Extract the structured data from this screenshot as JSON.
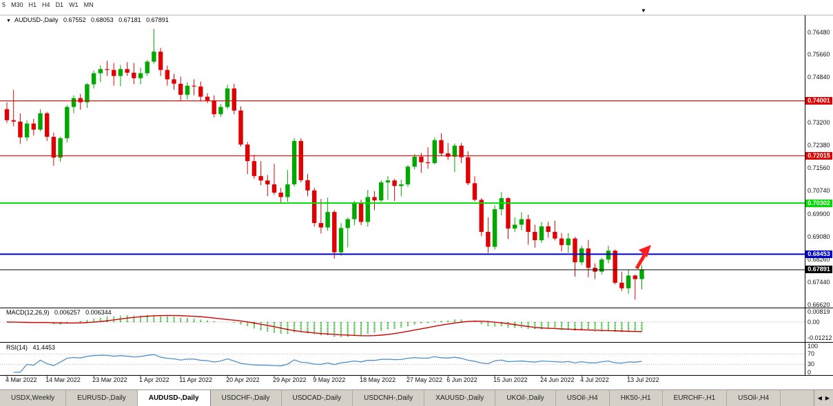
{
  "toolbar": {
    "timeframes": [
      "5",
      "M30",
      "H1",
      "H4",
      "D1",
      "W1",
      "MN"
    ]
  },
  "icons": {
    "chart_shift": "▼",
    "symbol_marker": "▼",
    "scroll_left": "◀",
    "scroll_right": "▶"
  },
  "header": {
    "marker": "▼",
    "symbol": "AUDUSD-,Daily",
    "open": "0.67552",
    "high": "0.68053",
    "low": "0.67181",
    "close": "0.67891"
  },
  "price_axis": {
    "labels": [
      "0.76480",
      "0.75660",
      "0.74840",
      "0.73200",
      "0.72380",
      "0.71560",
      "0.70740",
      "0.69900",
      "0.69080",
      "0.68260",
      "0.67440",
      "0.66620"
    ]
  },
  "indicators": {
    "macd": {
      "name": "MACD(12,26,9)",
      "value1": "0.006257",
      "value2": "0.006344",
      "axis_labels": [
        "0.00819",
        "0.00",
        "-0.01212"
      ]
    },
    "rsi": {
      "name": "RSI(14)",
      "value": "41.4453",
      "axis_labels": [
        "100",
        "70",
        "30",
        "0"
      ]
    }
  },
  "colors": {
    "candle_up": "#00A800",
    "candle_down": "#DF0202",
    "macd_bar": "#00A800",
    "macd_signal": "#D40000",
    "rsi_line": "#4E8FCC",
    "level_red": "#E00000",
    "level_green": "#00DC00",
    "level_blue": "#0000C8",
    "current_price": "#000000",
    "arrow": "#FF1E1E",
    "tab_bar": "#D4D0C8",
    "background": "#FFFFFF"
  },
  "chart_data": {
    "type": "candlestick",
    "symbol": "AUDUSD",
    "timeframe": "Daily",
    "title": "AUDUSD-,Daily 0.67552 0.68053 0.67181 0.67891",
    "ylim": [
      0.6662,
      0.7648
    ],
    "n_candles": 96,
    "x_tick_labels": [
      "4 Mar 2022",
      "14 Mar 2022",
      "23 Mar 2022",
      "1 Apr 2022",
      "11 Apr 2022",
      "20 Apr 2022",
      "29 Apr 2022",
      "9 May 2022",
      "18 May 2022",
      "27 May 2022",
      "6 Jun 2022",
      "15 Jun 2022",
      "24 Jun 2022",
      "4 Jul 2022",
      "13 Jul 2022"
    ],
    "x_tick_indices": [
      0,
      6,
      13,
      20,
      26,
      33,
      40,
      46,
      53,
      60,
      66,
      73,
      80,
      86,
      93
    ],
    "candles": [
      [
        0.737,
        0.7395,
        0.732,
        0.733
      ],
      [
        0.733,
        0.744,
        0.7308,
        0.7325
      ],
      [
        0.7325,
        0.7355,
        0.7245,
        0.7268
      ],
      [
        0.7268,
        0.733,
        0.7255,
        0.7318
      ],
      [
        0.7318,
        0.7335,
        0.7275,
        0.7296
      ],
      [
        0.7296,
        0.737,
        0.729,
        0.7355
      ],
      [
        0.7355,
        0.736,
        0.7255,
        0.727
      ],
      [
        0.727,
        0.7285,
        0.7165,
        0.7195
      ],
      [
        0.7195,
        0.727,
        0.718,
        0.7265
      ],
      [
        0.7265,
        0.7385,
        0.725,
        0.7378
      ],
      [
        0.7378,
        0.742,
        0.7355,
        0.741
      ],
      [
        0.741,
        0.7425,
        0.7368,
        0.7395
      ],
      [
        0.7395,
        0.7465,
        0.7375,
        0.746
      ],
      [
        0.746,
        0.751,
        0.7445,
        0.75
      ],
      [
        0.75,
        0.7528,
        0.7468,
        0.7515
      ],
      [
        0.7515,
        0.7545,
        0.749,
        0.7512
      ],
      [
        0.7512,
        0.7537,
        0.7455,
        0.749
      ],
      [
        0.749,
        0.753,
        0.7453,
        0.7515
      ],
      [
        0.7515,
        0.754,
        0.749,
        0.7502
      ],
      [
        0.7502,
        0.7537,
        0.746,
        0.7482
      ],
      [
        0.7482,
        0.752,
        0.746,
        0.75
      ],
      [
        0.75,
        0.7548,
        0.749,
        0.7542
      ],
      [
        0.7542,
        0.7661,
        0.7535,
        0.7578
      ],
      [
        0.7578,
        0.7592,
        0.749,
        0.7512
      ],
      [
        0.7512,
        0.7528,
        0.7455,
        0.7478
      ],
      [
        0.7478,
        0.7498,
        0.744,
        0.7462
      ],
      [
        0.7462,
        0.7488,
        0.74,
        0.7422
      ],
      [
        0.7422,
        0.7468,
        0.7405,
        0.7455
      ],
      [
        0.7455,
        0.7478,
        0.742,
        0.7452
      ],
      [
        0.7452,
        0.747,
        0.7398,
        0.7415
      ],
      [
        0.7415,
        0.7428,
        0.7392,
        0.7402
      ],
      [
        0.7402,
        0.742,
        0.734,
        0.7352
      ],
      [
        0.7352,
        0.7388,
        0.7342,
        0.7378
      ],
      [
        0.7378,
        0.7458,
        0.737,
        0.7445
      ],
      [
        0.7445,
        0.7462,
        0.7352,
        0.7365
      ],
      [
        0.7365,
        0.738,
        0.7235,
        0.7242
      ],
      [
        0.7242,
        0.7252,
        0.7135,
        0.7182
      ],
      [
        0.7182,
        0.7205,
        0.7118,
        0.7128
      ],
      [
        0.7128,
        0.7182,
        0.7095,
        0.7112
      ],
      [
        0.7112,
        0.7132,
        0.7055,
        0.7098
      ],
      [
        0.7098,
        0.7172,
        0.706,
        0.7068
      ],
      [
        0.7068,
        0.7085,
        0.7029,
        0.7052
      ],
      [
        0.7052,
        0.715,
        0.7035,
        0.7098
      ],
      [
        0.7098,
        0.7266,
        0.709,
        0.7255
      ],
      [
        0.7255,
        0.7265,
        0.7105,
        0.7113
      ],
      [
        0.7113,
        0.7135,
        0.7055,
        0.7076
      ],
      [
        0.7076,
        0.7085,
        0.6945,
        0.6958
      ],
      [
        0.6958,
        0.7045,
        0.692,
        0.6942
      ],
      [
        0.6942,
        0.705,
        0.693,
        0.6998
      ],
      [
        0.6998,
        0.7005,
        0.6829,
        0.6852
      ],
      [
        0.6852,
        0.6958,
        0.684,
        0.694
      ],
      [
        0.694,
        0.6978,
        0.687,
        0.6972
      ],
      [
        0.6972,
        0.7038,
        0.695,
        0.7028
      ],
      [
        0.7028,
        0.7042,
        0.695,
        0.6962
      ],
      [
        0.6962,
        0.7078,
        0.6945,
        0.7052
      ],
      [
        0.7052,
        0.7073,
        0.7005,
        0.704
      ],
      [
        0.704,
        0.7113,
        0.7035,
        0.7105
      ],
      [
        0.7105,
        0.7128,
        0.7042,
        0.7112
      ],
      [
        0.7112,
        0.7118,
        0.7038,
        0.7092
      ],
      [
        0.7092,
        0.7115,
        0.7055,
        0.7098
      ],
      [
        0.7098,
        0.7168,
        0.7088,
        0.7162
      ],
      [
        0.7162,
        0.7208,
        0.7152,
        0.7198
      ],
      [
        0.7198,
        0.7212,
        0.714,
        0.7178
      ],
      [
        0.7178,
        0.7232,
        0.7155,
        0.7175
      ],
      [
        0.7175,
        0.7268,
        0.717,
        0.7258
      ],
      [
        0.7258,
        0.7283,
        0.72,
        0.721
      ],
      [
        0.721,
        0.7248,
        0.7186,
        0.7198
      ],
      [
        0.7198,
        0.7246,
        0.7142,
        0.7238
      ],
      [
        0.7238,
        0.7248,
        0.7175,
        0.7196
      ],
      [
        0.7196,
        0.7218,
        0.7095,
        0.7102
      ],
      [
        0.7102,
        0.7127,
        0.7036,
        0.7042
      ],
      [
        0.7042,
        0.7048,
        0.691,
        0.6926
      ],
      [
        0.6926,
        0.6978,
        0.685,
        0.6872
      ],
      [
        0.6872,
        0.7022,
        0.6862,
        0.7008
      ],
      [
        0.7008,
        0.707,
        0.6986,
        0.7048
      ],
      [
        0.7048,
        0.7052,
        0.69,
        0.6938
      ],
      [
        0.6938,
        0.6978,
        0.6926,
        0.6952
      ],
      [
        0.6952,
        0.6997,
        0.6932,
        0.6972
      ],
      [
        0.6972,
        0.6988,
        0.688,
        0.6926
      ],
      [
        0.6926,
        0.6952,
        0.6869,
        0.6896
      ],
      [
        0.6896,
        0.6962,
        0.6886,
        0.6946
      ],
      [
        0.6946,
        0.6962,
        0.6905,
        0.6926
      ],
      [
        0.6926,
        0.6966,
        0.6895,
        0.6902
      ],
      [
        0.6902,
        0.6922,
        0.6855,
        0.6878
      ],
      [
        0.6878,
        0.6922,
        0.685,
        0.6902
      ],
      [
        0.6902,
        0.6908,
        0.6764,
        0.6816
      ],
      [
        0.6816,
        0.6876,
        0.6806,
        0.6866
      ],
      [
        0.6866,
        0.6896,
        0.6762,
        0.6796
      ],
      [
        0.6796,
        0.6812,
        0.6755,
        0.6782
      ],
      [
        0.6782,
        0.6832,
        0.6772,
        0.6826
      ],
      [
        0.6826,
        0.6876,
        0.6812,
        0.6858
      ],
      [
        0.6858,
        0.6862,
        0.6736,
        0.6742
      ],
      [
        0.6742,
        0.6782,
        0.6712,
        0.6722
      ],
      [
        0.6722,
        0.6788,
        0.6702,
        0.6768
      ],
      [
        0.6768,
        0.6772,
        0.6681,
        0.6755
      ],
      [
        0.67552,
        0.68053,
        0.67181,
        0.67891
      ]
    ],
    "horizontal_levels": [
      {
        "price": 0.74001,
        "label": "0.74001",
        "color": "#E00000",
        "line_width": 1.2,
        "kind": "resistance-line"
      },
      {
        "price": 0.72015,
        "label": "0.72015",
        "color": "#E00000",
        "line_width": 1.2,
        "kind": "resistance-line"
      },
      {
        "price": 0.70302,
        "label": "0.70302",
        "color": "#00DC00",
        "line_width": 2,
        "kind": "support-line"
      },
      {
        "price": 0.68453,
        "label": "0.68453",
        "color": "#0000C8",
        "line_width": 2,
        "kind": "key-support-line"
      },
      {
        "price": 0.67891,
        "label": "0.67891",
        "color": "#000000",
        "line_width": 1,
        "kind": "current-price-line"
      }
    ],
    "sub_panels": [
      {
        "name": "MACD",
        "params": "12,26,9",
        "axis_labels": [
          "0.00819",
          "0.00",
          "-0.01212"
        ]
      },
      {
        "name": "RSI",
        "params": "14",
        "axis_labels": [
          "100",
          "70",
          "30",
          "0"
        ]
      }
    ],
    "annotation": {
      "type": "arrow",
      "color": "#FF1E1E",
      "direction": "up",
      "near_index": 95
    }
  },
  "tabs": {
    "items": [
      {
        "label": "USDX,Weekly",
        "active": false
      },
      {
        "label": "EURUSD-,Daily",
        "active": false
      },
      {
        "label": "AUDUSD-,Daily",
        "active": true
      },
      {
        "label": "USDCHF-,Daily",
        "active": false
      },
      {
        "label": "USDCAD-,Daily",
        "active": false
      },
      {
        "label": "USDCNH-,Daily",
        "active": false
      },
      {
        "label": "XAUUSD-,Daily",
        "active": false
      },
      {
        "label": "UKOil-,Daily",
        "active": false
      },
      {
        "label": "USOil-,H4",
        "active": false
      },
      {
        "label": "HK50-,H1",
        "active": false
      },
      {
        "label": "EURCHF-,H1",
        "active": false
      },
      {
        "label": "USOil-,H4",
        "active": false
      }
    ]
  }
}
